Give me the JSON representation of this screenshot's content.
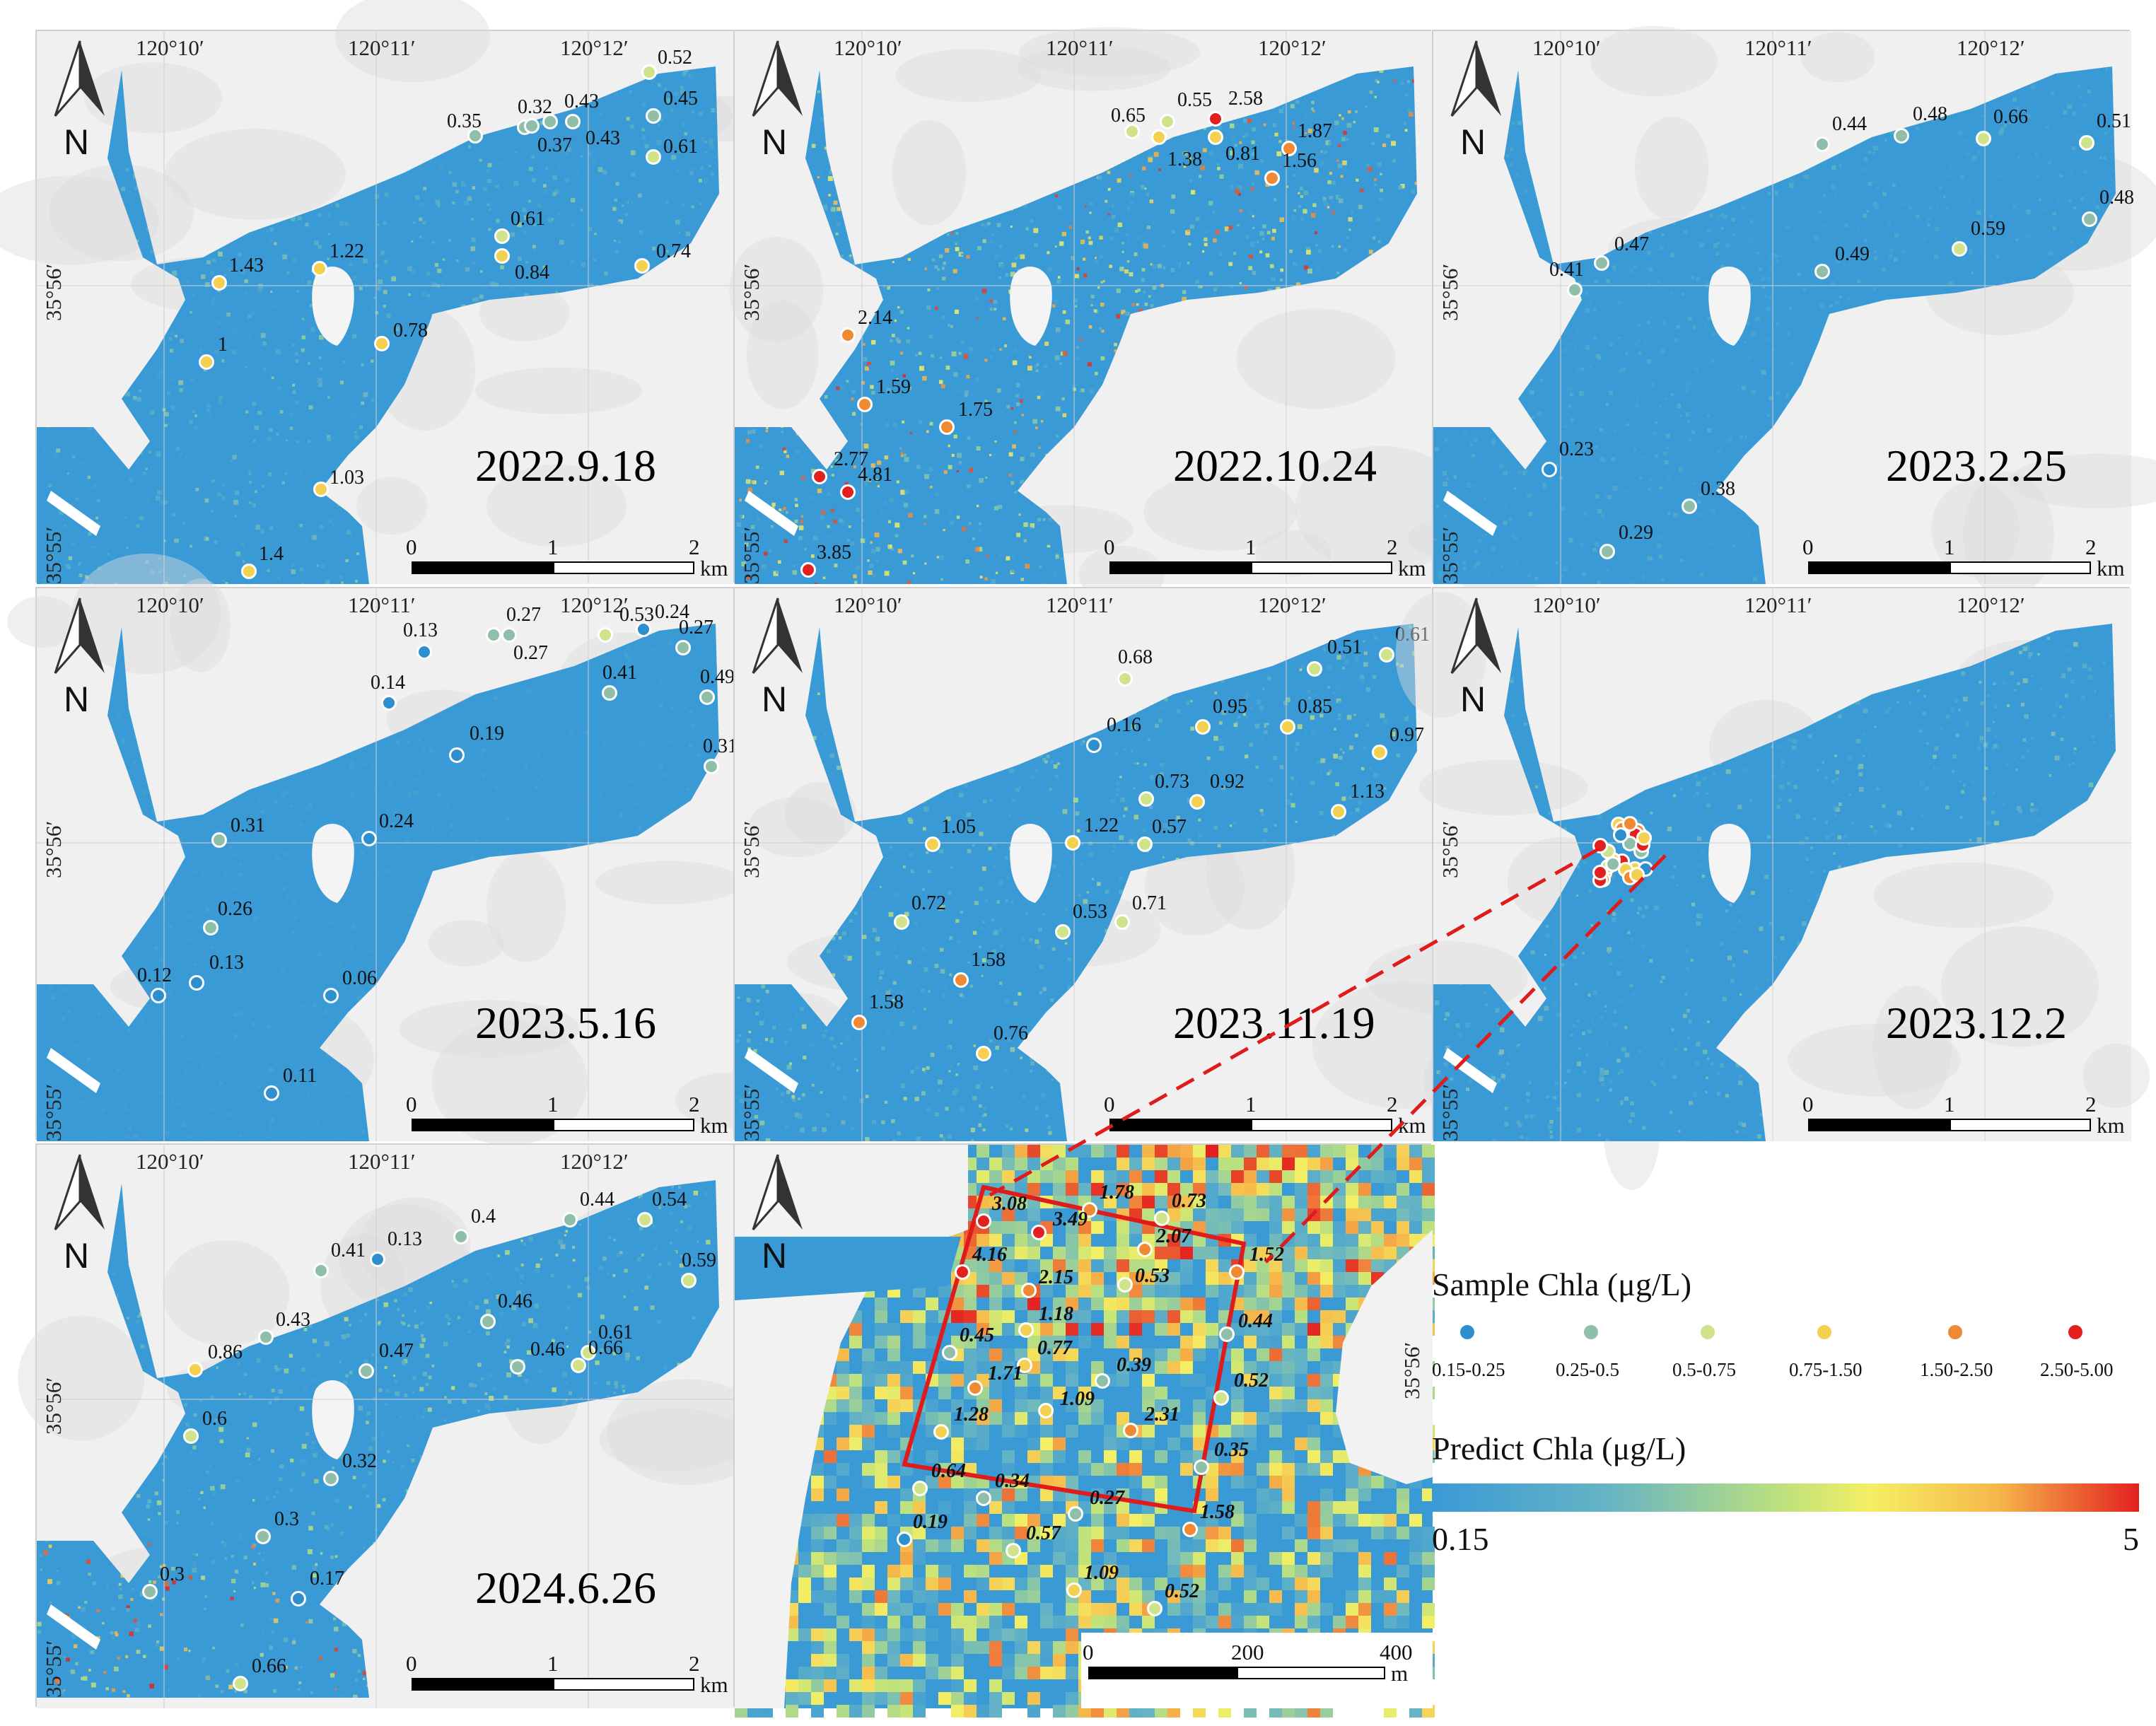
{
  "colors": {
    "water_low": "#3a9ad6",
    "c1": "#2e8fcf",
    "c2": "#8fbfa8",
    "c3": "#cfe38a",
    "c4": "#f3d050",
    "c5": "#ef8a32",
    "c6": "#e32020",
    "land": "#f1f1f1",
    "inset_frame": "#e01b1b"
  },
  "grid_labels": {
    "lon": [
      "120°10′",
      "120°11′",
      "120°12′"
    ],
    "lat_a": "35°56′",
    "lat_b": "35°55′"
  },
  "north_label": "N",
  "scale_km": {
    "ticks": [
      "0",
      "1",
      "2"
    ],
    "unit": "km"
  },
  "scale_m": {
    "ticks": [
      "0",
      "200",
      "400"
    ],
    "unit": "m"
  },
  "panels": [
    {
      "date": "2022.9.18",
      "samples": [
        {
          "v": "0.35",
          "c": "c2"
        },
        {
          "v": "0.32",
          "c": "c2"
        },
        {
          "v": "0.37",
          "c": "c2"
        },
        {
          "v": "0.43",
          "c": "c2"
        },
        {
          "v": "0.43",
          "c": "c2"
        },
        {
          "v": "0.52",
          "c": "c3"
        },
        {
          "v": "0.45",
          "c": "c2"
        },
        {
          "v": "0.61",
          "c": "c3"
        },
        {
          "v": "0.61",
          "c": "c3"
        },
        {
          "v": "0.84",
          "c": "c4"
        },
        {
          "v": "0.74",
          "c": "c4"
        },
        {
          "v": "1.43",
          "c": "c4"
        },
        {
          "v": "1.22",
          "c": "c4"
        },
        {
          "v": "1",
          "c": "c4"
        },
        {
          "v": "0.78",
          "c": "c4"
        },
        {
          "v": "1.03",
          "c": "c4"
        },
        {
          "v": "1.4",
          "c": "c4"
        }
      ]
    },
    {
      "date": "2022.10.24",
      "samples": [
        {
          "v": "0.65",
          "c": "c3"
        },
        {
          "v": "0.55",
          "c": "c3"
        },
        {
          "v": "2.58",
          "c": "c6"
        },
        {
          "v": "1.38",
          "c": "c4"
        },
        {
          "v": "0.81",
          "c": "c4"
        },
        {
          "v": "1.87",
          "c": "c5"
        },
        {
          "v": "1.56",
          "c": "c5"
        },
        {
          "v": "2.14",
          "c": "c5"
        },
        {
          "v": "1.59",
          "c": "c5"
        },
        {
          "v": "1.75",
          "c": "c5"
        },
        {
          "v": "2.77",
          "c": "c6"
        },
        {
          "v": "4.81",
          "c": "c6"
        },
        {
          "v": "3.85",
          "c": "c6"
        }
      ]
    },
    {
      "date": "2023.2.25",
      "samples": [
        {
          "v": "0.44",
          "c": "c2"
        },
        {
          "v": "0.48",
          "c": "c2"
        },
        {
          "v": "0.66",
          "c": "c3"
        },
        {
          "v": "0.51",
          "c": "c3"
        },
        {
          "v": "0.48",
          "c": "c2"
        },
        {
          "v": "0.41",
          "c": "c2"
        },
        {
          "v": "0.47",
          "c": "c2"
        },
        {
          "v": "0.49",
          "c": "c2"
        },
        {
          "v": "0.59",
          "c": "c3"
        },
        {
          "v": "0.23",
          "c": "c1"
        },
        {
          "v": "0.38",
          "c": "c2"
        },
        {
          "v": "0.29",
          "c": "c2"
        }
      ]
    },
    {
      "date": "2023.5.16",
      "samples": [
        {
          "v": "0.13",
          "c": "c1"
        },
        {
          "v": "0.27",
          "c": "c2"
        },
        {
          "v": "0.27",
          "c": "c2"
        },
        {
          "v": "0.53",
          "c": "c3"
        },
        {
          "v": "0.24",
          "c": "c1"
        },
        {
          "v": "0.27",
          "c": "c2"
        },
        {
          "v": "0.14",
          "c": "c1"
        },
        {
          "v": "0.41",
          "c": "c2"
        },
        {
          "v": "0.49",
          "c": "c2"
        },
        {
          "v": "0.19",
          "c": "c1"
        },
        {
          "v": "0.31",
          "c": "c2"
        },
        {
          "v": "0.31",
          "c": "c2"
        },
        {
          "v": "0.24",
          "c": "c1"
        },
        {
          "v": "0.26",
          "c": "c2"
        },
        {
          "v": "0.12",
          "c": "c1"
        },
        {
          "v": "0.13",
          "c": "c1"
        },
        {
          "v": "0.06",
          "c": "c1"
        },
        {
          "v": "0.11",
          "c": "c1"
        }
      ]
    },
    {
      "date": "2023.11.19",
      "samples": [
        {
          "v": "0.68",
          "c": "c3"
        },
        {
          "v": "0.51",
          "c": "c3"
        },
        {
          "v": "0.61",
          "c": "c3"
        },
        {
          "v": "0.16",
          "c": "c1"
        },
        {
          "v": "0.95",
          "c": "c4"
        },
        {
          "v": "0.85",
          "c": "c4"
        },
        {
          "v": "0.97",
          "c": "c4"
        },
        {
          "v": "0.73",
          "c": "c3"
        },
        {
          "v": "0.92",
          "c": "c4"
        },
        {
          "v": "1.13",
          "c": "c4"
        },
        {
          "v": "1.05",
          "c": "c4"
        },
        {
          "v": "1.22",
          "c": "c4"
        },
        {
          "v": "0.57",
          "c": "c3"
        },
        {
          "v": "0.72",
          "c": "c3"
        },
        {
          "v": "0.71",
          "c": "c3"
        },
        {
          "v": "0.53",
          "c": "c3"
        },
        {
          "v": "1.58",
          "c": "c5"
        },
        {
          "v": "1.58",
          "c": "c5"
        },
        {
          "v": "0.76",
          "c": "c4"
        }
      ]
    },
    {
      "date": "2023.12.2",
      "samples": []
    },
    {
      "date": "2024.6.26",
      "samples": [
        {
          "v": "0.4",
          "c": "c2"
        },
        {
          "v": "0.44",
          "c": "c2"
        },
        {
          "v": "0.54",
          "c": "c3"
        },
        {
          "v": "0.41",
          "c": "c2"
        },
        {
          "v": "0.13",
          "c": "c1"
        },
        {
          "v": "0.59",
          "c": "c3"
        },
        {
          "v": "0.46",
          "c": "c2"
        },
        {
          "v": "0.43",
          "c": "c2"
        },
        {
          "v": "0.61",
          "c": "c3"
        },
        {
          "v": "0.86",
          "c": "c4"
        },
        {
          "v": "0.47",
          "c": "c2"
        },
        {
          "v": "0.46",
          "c": "c2"
        },
        {
          "v": "0.66",
          "c": "c3"
        },
        {
          "v": "0.6",
          "c": "c3"
        },
        {
          "v": "0.32",
          "c": "c2"
        },
        {
          "v": "0.3",
          "c": "c2"
        },
        {
          "v": "0.3",
          "c": "c2"
        },
        {
          "v": "0.17",
          "c": "c1"
        },
        {
          "v": "0.66",
          "c": "c3"
        }
      ]
    }
  ],
  "inset_samples": [
    {
      "v": "3.08",
      "c": "c6"
    },
    {
      "v": "1.78",
      "c": "c5"
    },
    {
      "v": "0.73",
      "c": "c3"
    },
    {
      "v": "4.16",
      "c": "c6"
    },
    {
      "v": "3.49",
      "c": "c6"
    },
    {
      "v": "2.07",
      "c": "c5"
    },
    {
      "v": "1.52",
      "c": "c5"
    },
    {
      "v": "2.15",
      "c": "c5"
    },
    {
      "v": "0.53",
      "c": "c3"
    },
    {
      "v": "1.18",
      "c": "c4"
    },
    {
      "v": "0.44",
      "c": "c2"
    },
    {
      "v": "0.45",
      "c": "c2"
    },
    {
      "v": "0.77",
      "c": "c4"
    },
    {
      "v": "1.71",
      "c": "c5"
    },
    {
      "v": "0.39",
      "c": "c2"
    },
    {
      "v": "0.52",
      "c": "c3"
    },
    {
      "v": "1.28",
      "c": "c4"
    },
    {
      "v": "1.09",
      "c": "c4"
    },
    {
      "v": "2.31",
      "c": "c5"
    },
    {
      "v": "0.35",
      "c": "c2"
    },
    {
      "v": "0.64",
      "c": "c3"
    },
    {
      "v": "0.34",
      "c": "c2"
    },
    {
      "v": "0.27",
      "c": "c2"
    },
    {
      "v": "1.58",
      "c": "c5"
    },
    {
      "v": "0.19",
      "c": "c1"
    },
    {
      "v": "0.57",
      "c": "c3"
    },
    {
      "v": "1.09",
      "c": "c4"
    },
    {
      "v": "0.52",
      "c": "c3"
    }
  ],
  "legend": {
    "sample_title": "Sample Chla (μg/L)",
    "sample_classes": [
      {
        "label": "0.15-0.25",
        "c": "c1"
      },
      {
        "label": "0.25-0.5",
        "c": "c2"
      },
      {
        "label": "0.5-0.75",
        "c": "c3"
      },
      {
        "label": "0.75-1.50",
        "c": "c4"
      },
      {
        "label": "1.50-2.50",
        "c": "c5"
      },
      {
        "label": "2.50-5.00",
        "c": "c6"
      }
    ],
    "predict_title": "Predict Chla (μg/L)",
    "predict_min": "0.15",
    "predict_max": "5"
  }
}
